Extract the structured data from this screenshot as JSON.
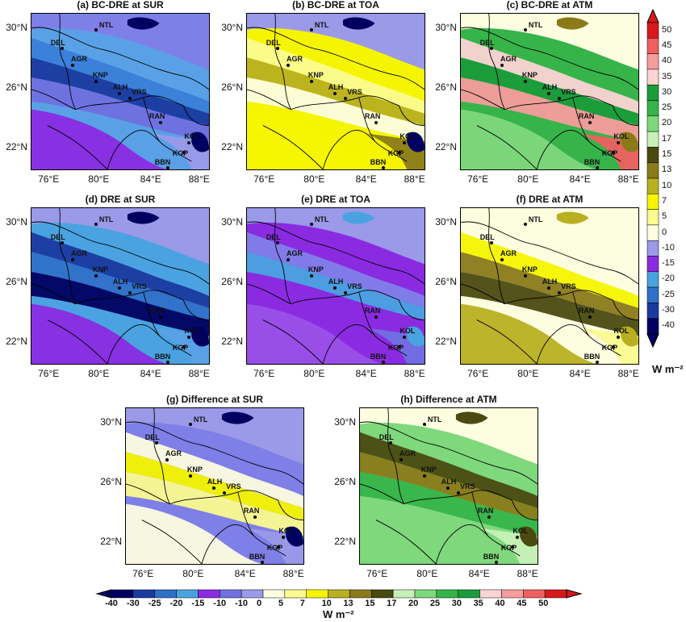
{
  "panels": [
    {
      "id": "a",
      "title": "(a) BC-DRE at SUR",
      "palette": "sur_bc"
    },
    {
      "id": "b",
      "title": "(b) BC-DRE at TOA",
      "palette": "toa_bc"
    },
    {
      "id": "c",
      "title": "(c) BC-DRE at ATM",
      "palette": "atm_bc"
    },
    {
      "id": "d",
      "title": "(d) DRE at SUR",
      "palette": "sur_dre"
    },
    {
      "id": "e",
      "title": "(e) DRE at TOA",
      "palette": "toa_dre"
    },
    {
      "id": "f",
      "title": "(f) DRE at ATM",
      "palette": "atm_dre"
    },
    {
      "id": "g",
      "title": "(g) Difference at SUR",
      "palette": "sur_diff"
    },
    {
      "id": "h",
      "title": "(h) Difference at ATM",
      "palette": "atm_diff"
    }
  ],
  "lat_labels": [
    "30°N",
    "26°N",
    "22°N"
  ],
  "lon_labels": [
    "76°E",
    "80°E",
    "84°E",
    "88°E"
  ],
  "cities": [
    {
      "label": "NTL"
    },
    {
      "label": "DEL"
    },
    {
      "label": "AGR"
    },
    {
      "label": "KNP"
    },
    {
      "label": "ALH"
    },
    {
      "label": "VRS"
    },
    {
      "label": "RAN"
    },
    {
      "label": "KOL"
    },
    {
      "label": "KGP"
    },
    {
      "label": "BBN"
    }
  ],
  "colorbar_vertical": {
    "ticks": [
      "50",
      "45",
      "40",
      "35",
      "30",
      "25",
      "20",
      "17",
      "15",
      "13",
      "10",
      "7",
      "5",
      "0",
      "-10",
      "-15",
      "-20",
      "-25",
      "-30",
      "-40"
    ],
    "colors": [
      "#d7191c",
      "#f06060",
      "#f79c9c",
      "#fcd4d4",
      "#1a9c3a",
      "#36b44a",
      "#7fd87c",
      "#c8f0b8",
      "#4a4a10",
      "#8a7a1a",
      "#b8b020",
      "#f5f500",
      "#fbfb90",
      "#fdfde0",
      "#9a9ae8",
      "#8a2be2",
      "#4aa3e0",
      "#2f70c8",
      "#1a3aa0",
      "#000060"
    ],
    "unit": "W m⁻²"
  },
  "colorbar_horizontal": {
    "ticks": [
      "-40",
      "-30",
      "-25",
      "-20",
      "-15",
      "-10",
      "-10",
      "0",
      "5",
      "7",
      "10",
      "13",
      "15",
      "17",
      "20",
      "25",
      "30",
      "35",
      "40",
      "45",
      "50"
    ],
    "colors": [
      "#000060",
      "#1a3aa0",
      "#2f70c8",
      "#4aa3e0",
      "#8a2be2",
      "#7070e0",
      "#9a9ae8",
      "#fdfde0",
      "#fbfb90",
      "#f5f500",
      "#b8b020",
      "#8a7a1a",
      "#4a4a10",
      "#c8f0b8",
      "#7fd87c",
      "#36b44a",
      "#1a9c3a",
      "#fcd4d4",
      "#f79c9c",
      "#f06060",
      "#d7191c"
    ],
    "unit": "W m⁻²"
  }
}
